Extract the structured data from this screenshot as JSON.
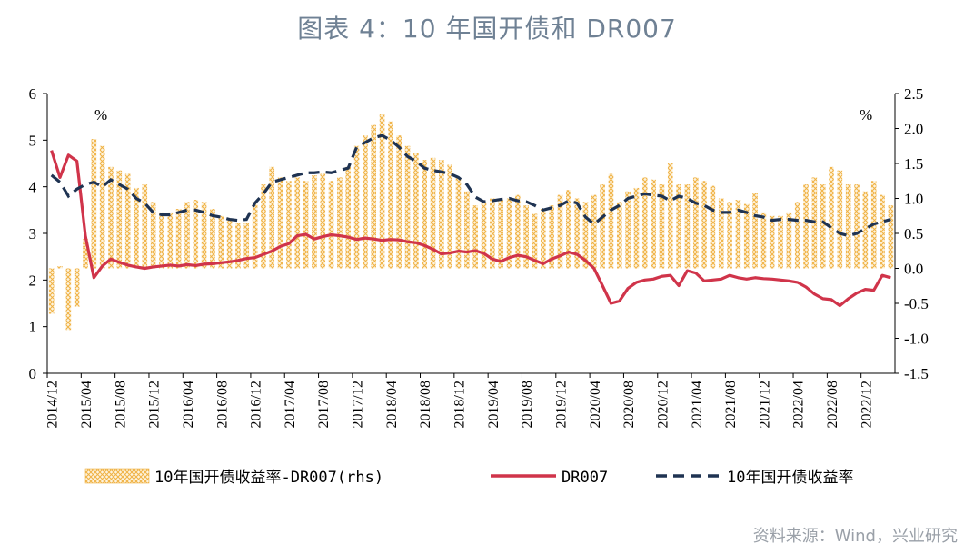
{
  "title": "图表 4：10 年国开债和 DR007",
  "source": "资料来源：Wind，兴业研究",
  "chart_data": {
    "type": "bar+line",
    "title": "图表 4：10 年国开债和 DR007",
    "left_unit": "%",
    "right_unit": "%",
    "ylim_left": [
      0,
      6
    ],
    "yticks_left": [
      "0",
      "1",
      "2",
      "3",
      "4",
      "5",
      "6"
    ],
    "ylim_right": [
      -1.5,
      2.5
    ],
    "yticks_right": [
      "-1.5",
      "-1.0",
      "-0.5",
      "0.0",
      "0.5",
      "1.0",
      "1.5",
      "2.0",
      "2.5"
    ],
    "x_tick_labels": [
      "2014/12",
      "2015/04",
      "2015/08",
      "2015/12",
      "2016/04",
      "2016/08",
      "2016/12",
      "2017/04",
      "2017/08",
      "2017/12",
      "2018/04",
      "2018/08",
      "2018/12",
      "2019/04",
      "2019/08",
      "2019/12",
      "2020/04",
      "2020/08",
      "2020/12",
      "2021/04",
      "2021/08",
      "2021/12",
      "2022/04",
      "2022/08",
      "2022/12"
    ],
    "months_count": 100,
    "series": [
      {
        "name": "10年国开债收益率-DR007(rhs)",
        "type": "bar",
        "axis": "right",
        "color": "#f0b143",
        "values": [
          -0.65,
          0.03,
          -0.88,
          -0.55,
          0.42,
          1.85,
          1.75,
          1.45,
          1.4,
          1.35,
          1.15,
          1.2,
          0.95,
          0.8,
          0.8,
          0.85,
          0.95,
          0.98,
          0.95,
          0.85,
          0.75,
          0.7,
          0.65,
          0.65,
          0.95,
          1.2,
          1.45,
          1.3,
          1.25,
          1.3,
          1.25,
          1.33,
          1.35,
          1.25,
          1.3,
          1.45,
          1.75,
          1.9,
          2.05,
          2.2,
          2.1,
          1.9,
          1.75,
          1.65,
          1.55,
          1.58,
          1.55,
          1.48,
          1.3,
          1.1,
          0.9,
          0.95,
          1.0,
          0.98,
          1.0,
          1.05,
          0.9,
          0.78,
          0.85,
          0.9,
          1.05,
          1.12,
          1.0,
          0.95,
          1.05,
          1.2,
          1.35,
          0.95,
          1.1,
          1.15,
          1.3,
          1.27,
          1.2,
          1.5,
          1.2,
          1.2,
          1.3,
          1.25,
          1.18,
          1.0,
          0.95,
          0.98,
          0.92,
          1.08,
          0.8,
          0.75,
          0.75,
          0.8,
          0.95,
          1.2,
          1.3,
          1.2,
          1.45,
          1.4,
          1.2,
          1.2,
          1.1,
          1.25,
          1.05,
          0.9
        ]
      },
      {
        "name": "DR007",
        "type": "line",
        "axis": "left",
        "color": "#d0344a",
        "values": [
          4.78,
          4.2,
          4.68,
          4.55,
          2.95,
          2.05,
          2.3,
          2.45,
          2.38,
          2.32,
          2.28,
          2.25,
          2.28,
          2.3,
          2.32,
          2.3,
          2.33,
          2.31,
          2.34,
          2.35,
          2.37,
          2.39,
          2.42,
          2.46,
          2.48,
          2.55,
          2.62,
          2.72,
          2.78,
          2.95,
          2.98,
          2.88,
          2.93,
          2.97,
          2.95,
          2.92,
          2.87,
          2.9,
          2.88,
          2.85,
          2.87,
          2.86,
          2.82,
          2.8,
          2.74,
          2.66,
          2.56,
          2.58,
          2.62,
          2.6,
          2.63,
          2.57,
          2.45,
          2.4,
          2.48,
          2.53,
          2.5,
          2.42,
          2.35,
          2.45,
          2.52,
          2.6,
          2.55,
          2.42,
          2.25,
          1.88,
          1.5,
          1.55,
          1.82,
          1.95,
          2.0,
          2.02,
          2.08,
          2.1,
          1.88,
          2.2,
          2.15,
          1.98,
          2.0,
          2.02,
          2.1,
          2.05,
          2.02,
          2.05,
          2.03,
          2.02,
          2.0,
          1.98,
          1.95,
          1.85,
          1.7,
          1.6,
          1.58,
          1.45,
          1.6,
          1.72,
          1.8,
          1.78,
          2.1,
          2.05
        ]
      },
      {
        "name": "10年国开债收益率",
        "type": "line",
        "axis": "left",
        "dashed": true,
        "color": "#1f3352",
        "values": [
          4.25,
          4.1,
          3.8,
          3.95,
          4.05,
          4.1,
          4.0,
          4.15,
          4.05,
          3.95,
          3.75,
          3.65,
          3.45,
          3.4,
          3.4,
          3.45,
          3.5,
          3.5,
          3.45,
          3.38,
          3.35,
          3.3,
          3.28,
          3.3,
          3.65,
          3.85,
          4.1,
          4.15,
          4.2,
          4.25,
          4.3,
          4.3,
          4.32,
          4.3,
          4.35,
          4.4,
          4.85,
          4.95,
          5.05,
          5.1,
          5.0,
          4.85,
          4.65,
          4.55,
          4.4,
          4.35,
          4.32,
          4.28,
          4.2,
          4.05,
          3.78,
          3.68,
          3.7,
          3.73,
          3.75,
          3.7,
          3.68,
          3.6,
          3.5,
          3.55,
          3.6,
          3.7,
          3.65,
          3.35,
          3.2,
          3.35,
          3.5,
          3.6,
          3.75,
          3.8,
          3.85,
          3.82,
          3.8,
          3.7,
          3.8,
          3.75,
          3.65,
          3.6,
          3.5,
          3.45,
          3.45,
          3.5,
          3.45,
          3.38,
          3.35,
          3.28,
          3.3,
          3.3,
          3.28,
          3.28,
          3.25,
          3.25,
          3.12,
          3.0,
          2.95,
          3.0,
          3.1,
          3.2,
          3.25,
          3.3
        ]
      }
    ]
  }
}
